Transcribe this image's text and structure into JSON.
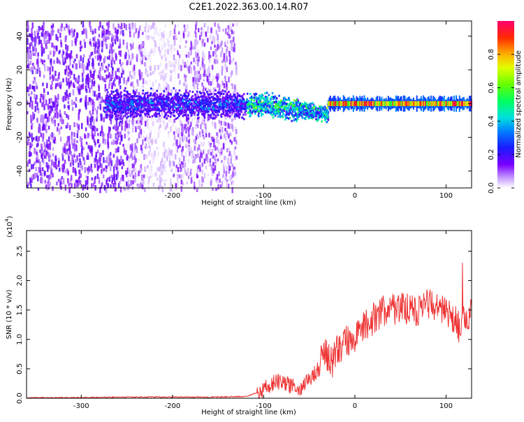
{
  "title": "C2E1.2022.363.00.14.R07",
  "chart_data": [
    {
      "type": "heatmap",
      "xlabel": "Height of straight line (km)",
      "ylabel": "Frequency (Hz)",
      "xlim": [
        -360,
        128
      ],
      "ylim": [
        -50,
        49
      ],
      "xticks": [
        -300,
        -200,
        -100,
        0,
        100
      ],
      "yticks": [
        -40,
        -20,
        0,
        20,
        40
      ],
      "colorbar": {
        "label": "Normalized spectral amplitude",
        "range": [
          0,
          1
        ],
        "ticks": [
          "0.0",
          "0.2",
          "0.4",
          "0.6",
          "0.8"
        ]
      },
      "description_points": {
        "noise_region_km": [
          -360,
          -130
        ],
        "dense_noise_region_km": [
          -360,
          -250
        ],
        "central_band_hz": [
          -8,
          8
        ],
        "line_start_km": -30,
        "line_frequency_hz": 0,
        "line_end_km": 128
      }
    },
    {
      "type": "line",
      "xlabel": "Height of straight line (km)",
      "ylabel": "SNR (10 * v/v)",
      "multiplier_label": "(x10",
      "multiplier_exp": "4",
      "xlim": [
        -360,
        128
      ],
      "ylim": [
        0,
        2.85
      ],
      "xticks": [
        -300,
        -200,
        -100,
        0,
        100
      ],
      "yticks": [
        "0.0",
        "0.5",
        "1.0",
        "1.5",
        "2.0",
        "2.5"
      ],
      "line_color": "#ee3333",
      "series": [
        {
          "x": [
            -360,
            -300,
            -250,
            -200,
            -150,
            -120,
            -110,
            -100,
            -90,
            -80,
            -70,
            -60,
            -50,
            -40,
            -35,
            -30,
            -25,
            -20,
            -10,
            0,
            10,
            20,
            30,
            40,
            50,
            60,
            70,
            80,
            90,
            100,
            110,
            115,
            120,
            125,
            128
          ],
          "values": [
            0.01,
            0.01,
            0.02,
            0.02,
            0.02,
            0.03,
            0.08,
            0.15,
            0.25,
            0.3,
            0.2,
            0.18,
            0.3,
            0.5,
            0.9,
            0.7,
            0.6,
            0.8,
            0.95,
            1.05,
            1.2,
            1.35,
            1.5,
            1.5,
            1.55,
            1.5,
            1.5,
            1.6,
            1.5,
            1.45,
            1.3,
            1.2,
            1.4,
            1.3,
            1.8
          ]
        }
      ]
    }
  ]
}
